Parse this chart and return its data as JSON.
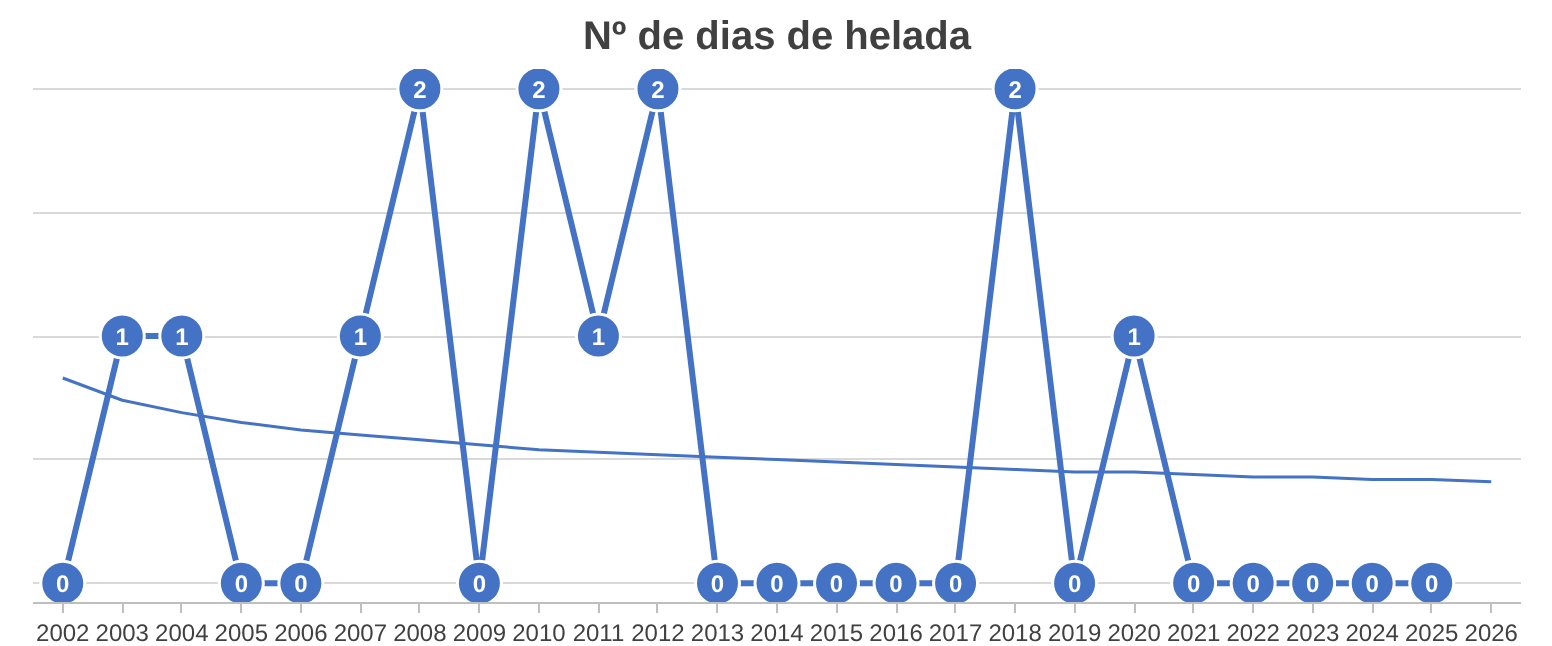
{
  "chart_data": {
    "type": "line",
    "title": "Nº de dias de helada",
    "categories": [
      "2002",
      "2003",
      "2004",
      "2005",
      "2006",
      "2007",
      "2008",
      "2009",
      "2010",
      "2011",
      "2012",
      "2013",
      "2014",
      "2015",
      "2016",
      "2017",
      "2018",
      "2019",
      "2020",
      "2021",
      "2022",
      "2023",
      "2024",
      "2025",
      "2026"
    ],
    "series": [
      {
        "color": "#4472c4",
        "values": [
          0,
          1,
          1,
          0,
          0,
          1,
          2,
          0,
          2,
          1,
          2,
          0,
          0,
          0,
          0,
          0,
          2,
          0,
          1,
          0,
          0,
          0,
          0,
          0,
          null
        ],
        "marker": "circle",
        "data_labels": true
      },
      {
        "type": "line",
        "color": "#4472c4",
        "marker": "none",
        "values": [
          0.83,
          0.74,
          0.69,
          0.65,
          0.62,
          0.6,
          0.58,
          0.56,
          0.54,
          0.53,
          0.52,
          0.51,
          0.5,
          0.49,
          0.48,
          0.47,
          0.46,
          0.45,
          0.45,
          0.44,
          0.43,
          0.43,
          0.42,
          0.42,
          0.41
        ]
      }
    ],
    "yticks": [
      {
        "value": 0,
        "label": null
      },
      {
        "value": 0.5,
        "label": null
      },
      {
        "value": 1,
        "label": null
      },
      {
        "value": 1.5,
        "label": null
      },
      {
        "value": 2,
        "label": null
      }
    ],
    "grid": "y",
    "tick_labels": "x",
    "line_style": "solid"
  }
}
